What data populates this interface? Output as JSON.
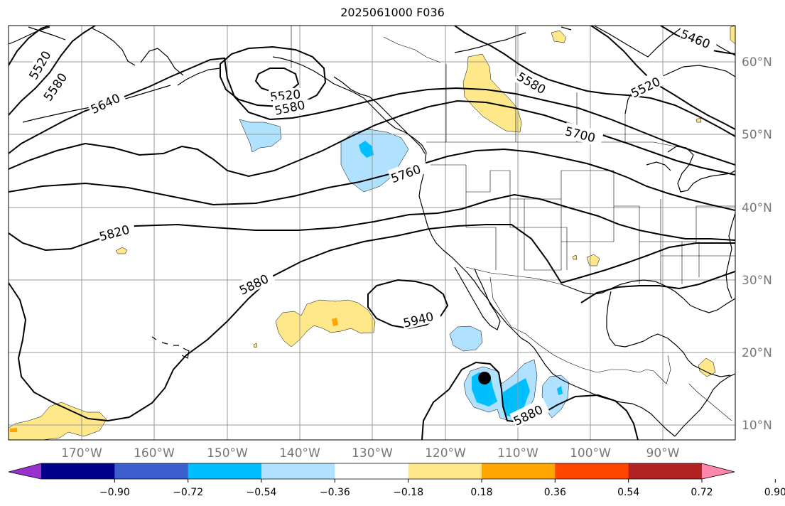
{
  "title": "2025061000 F036",
  "map": {
    "lat_labels": [
      "10°N",
      "20°N",
      "30°N",
      "40°N",
      "50°N",
      "60°N"
    ],
    "lon_labels": [
      "170°W",
      "160°W",
      "150°W",
      "140°W",
      "130°W",
      "120°W",
      "110°W",
      "100°W",
      "90°W"
    ],
    "contour_labels": [
      "5460",
      "5520",
      "5520",
      "5520",
      "5580",
      "5580",
      "5580",
      "5640",
      "5700",
      "5760",
      "5820",
      "5880",
      "5880",
      "5940"
    ],
    "marker": "filled black circle"
  },
  "colorbar": {
    "tick_labels": [
      "−0.90",
      "−0.72",
      "−0.54",
      "−0.36",
      "−0.18",
      "0.18",
      "0.36",
      "0.54",
      "0.72",
      "0.90"
    ],
    "colors": {
      "below_min": "#9932cc",
      "bins": [
        "#00008b",
        "#3a5fcd",
        "#00bfff",
        "#b0e2ff",
        "#ffffff",
        "#ffe88a",
        "#ffa500",
        "#ff4500",
        "#b22222"
      ],
      "above_max": "#ff88aa"
    }
  },
  "colors": {
    "grid": "#999999",
    "contour": "#000000",
    "axis_label": "#777777"
  }
}
